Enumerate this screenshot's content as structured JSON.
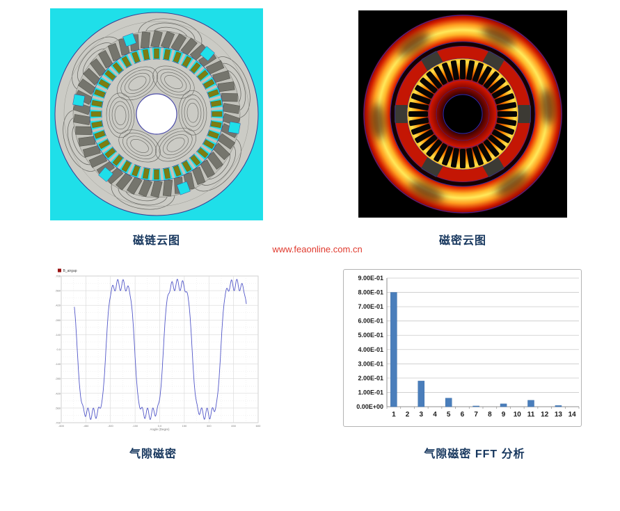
{
  "captions": {
    "color": "#17375e",
    "flux_linkage": "磁链云图",
    "flux_density": "磁密云图",
    "airgap": "气隙磁密",
    "airgap_fft": "气隙磁密 FFT 分析"
  },
  "watermark": {
    "text": "www.feaonline.com.cn",
    "color": "#e03a2e"
  },
  "figures": {
    "flux_linkage_plot": {
      "label": "motor flux-linkage contour plot",
      "background": "#1fdfe9",
      "palette": {
        "core_gray": "#cbcbc5",
        "ring_gray": "#c2c2bb",
        "magnet_gray": "#75756d",
        "winding_olive": "#7d7d12",
        "contour_line": "#62625d",
        "boundary_blue": "#3b3b8f",
        "shaft_white": "#ffffff"
      }
    },
    "flux_density_plot": {
      "label": "motor flux-density magnitude plot",
      "background": "#000000",
      "palette": {
        "hot_yellow": "#ffdf4a",
        "hot_orange": "#ff8a00",
        "hot_red": "#c41604",
        "dark_red": "#7a0600",
        "slot_black": "#070604",
        "wedge_gray": "#3c3a34",
        "outline_blue": "#2a2ab8"
      }
    }
  },
  "chart_data": [
    {
      "id": "airgap_flux_density",
      "type": "line",
      "legend": [
        {
          "label": "B_airgap",
          "color": "#991111",
          "position": "top-left"
        }
      ],
      "line_color": "#5156c8",
      "xlabel": "Angle (Degre)",
      "xlim": [
        -600,
        600
      ],
      "ylim": [
        -0.7,
        0.7
      ],
      "x_ticks": [
        "-600",
        "-450",
        "-300",
        "-150",
        "0.0",
        "150",
        "300",
        "450",
        "600"
      ],
      "y_ticks": [
        "0.700",
        "0.560",
        "0.420",
        "0.280",
        "0.140",
        "0.0",
        "-0.140",
        "-0.280",
        "-0.420",
        "-0.560",
        "-0.700"
      ],
      "grid": true,
      "waveform": {
        "description": "flat-topped alternating airgap flux wave with slot ripple; flats near ±0.62 with ripple peaks reaching ±0.70, three full periods across the axis",
        "amplitude": 0.615,
        "flat_top_peak": 0.7,
        "period_deg": 350,
        "top_center_deg": -240,
        "ripple_amplitude": 0.055,
        "ripple_period_deg": 33,
        "steepness": 2.5,
        "x_start": -520,
        "x_end": 528
      }
    },
    {
      "id": "airgap_fft",
      "type": "bar",
      "categories": [
        "1",
        "2",
        "3",
        "4",
        "5",
        "6",
        "7",
        "8",
        "9",
        "10",
        "11",
        "12",
        "13",
        "14"
      ],
      "values": [
        0.8,
        0,
        0.18,
        0,
        0.06,
        0,
        0.005,
        0,
        0.02,
        0,
        0.045,
        0,
        0.008,
        0
      ],
      "bar_color": "#4a7ebb",
      "bar_edge": "#3a6ca8",
      "ylim": [
        0,
        0.9
      ],
      "y_ticks": [
        "0.00E+00",
        "1.00E-01",
        "2.00E-01",
        "3.00E-01",
        "4.00E-01",
        "5.00E-01",
        "6.00E-01",
        "7.00E-01",
        "8.00E-01",
        "9.00E-01"
      ],
      "grid": true
    }
  ]
}
